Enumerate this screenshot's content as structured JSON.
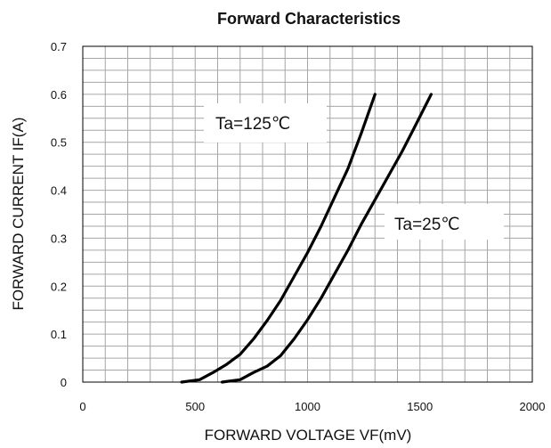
{
  "chart_data": {
    "type": "line",
    "title": "Forward Characteristics",
    "xlabel": "FORWARD VOLTAGE   VF(mV)",
    "ylabel": "FORWARD CURRENT  IF(A)",
    "xlim": [
      0,
      2000
    ],
    "ylim": [
      0,
      0.7
    ],
    "x_ticks": [
      "0",
      "500",
      "1000",
      "1500",
      "2000"
    ],
    "y_ticks": [
      "0",
      "0.1",
      "0.2",
      "0.3",
      "0.4",
      "0.5",
      "0.6",
      "0.7"
    ],
    "grid": true,
    "series": [
      {
        "name": "Ta=125℃",
        "x": [
          440,
          520,
          580,
          640,
          700,
          760,
          820,
          880,
          940,
          1000,
          1060,
          1120,
          1180,
          1240,
          1300
        ],
        "y": [
          0.0,
          0.005,
          0.02,
          0.037,
          0.058,
          0.09,
          0.128,
          0.17,
          0.22,
          0.27,
          0.325,
          0.385,
          0.445,
          0.52,
          0.6
        ]
      },
      {
        "name": "Ta=25℃",
        "x": [
          620,
          700,
          760,
          820,
          880,
          940,
          1000,
          1060,
          1120,
          1180,
          1240,
          1300,
          1360,
          1420,
          1480,
          1550
        ],
        "y": [
          0.0,
          0.005,
          0.02,
          0.033,
          0.055,
          0.09,
          0.13,
          0.175,
          0.225,
          0.275,
          0.33,
          0.38,
          0.43,
          0.48,
          0.535,
          0.6
        ]
      }
    ],
    "annotations": [
      "Ta=125℃",
      "Ta=25℃"
    ]
  }
}
